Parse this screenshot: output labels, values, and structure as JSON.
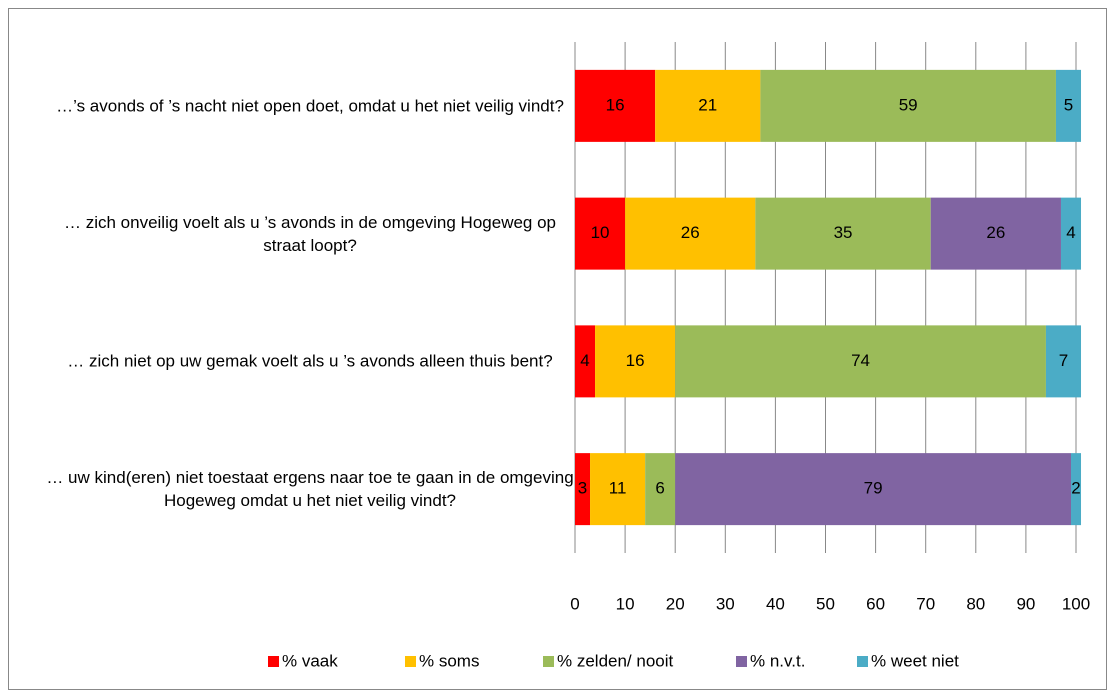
{
  "chart_data": {
    "type": "stacked-bar-horizontal",
    "categories": [
      "…’s avonds of ’s nacht niet open doet, omdat u het niet veilig vindt?",
      "… zich onveilig voelt als u ’s avonds in de omgeving Hogeweg op straat loopt?",
      "… zich niet op uw gemak voelt als u ’s avonds alleen thuis bent?",
      "… uw kind(eren) niet toestaat ergens naar toe te gaan in de omgeving Hogeweg omdat u het niet veilig vindt?"
    ],
    "series": [
      {
        "name": "% vaak",
        "color": "#ff0000",
        "values": [
          16,
          10,
          4,
          3
        ]
      },
      {
        "name": "% soms",
        "color": "#ffc000",
        "values": [
          21,
          26,
          16,
          11
        ]
      },
      {
        "name": "% zelden/ nooit",
        "color": "#9bbb59",
        "values": [
          59,
          35,
          74,
          6
        ]
      },
      {
        "name": "% n.v.t.",
        "color": "#8064a2",
        "values": [
          null,
          26,
          null,
          79
        ]
      },
      {
        "name": "% weet niet",
        "color": "#4bacc6",
        "values": [
          5,
          4,
          7,
          2
        ]
      }
    ],
    "xlim": [
      0,
      100
    ],
    "xticks": [
      0,
      10,
      20,
      30,
      40,
      50,
      60,
      70,
      80,
      90,
      100
    ],
    "grid": true,
    "legend": "bottom"
  }
}
